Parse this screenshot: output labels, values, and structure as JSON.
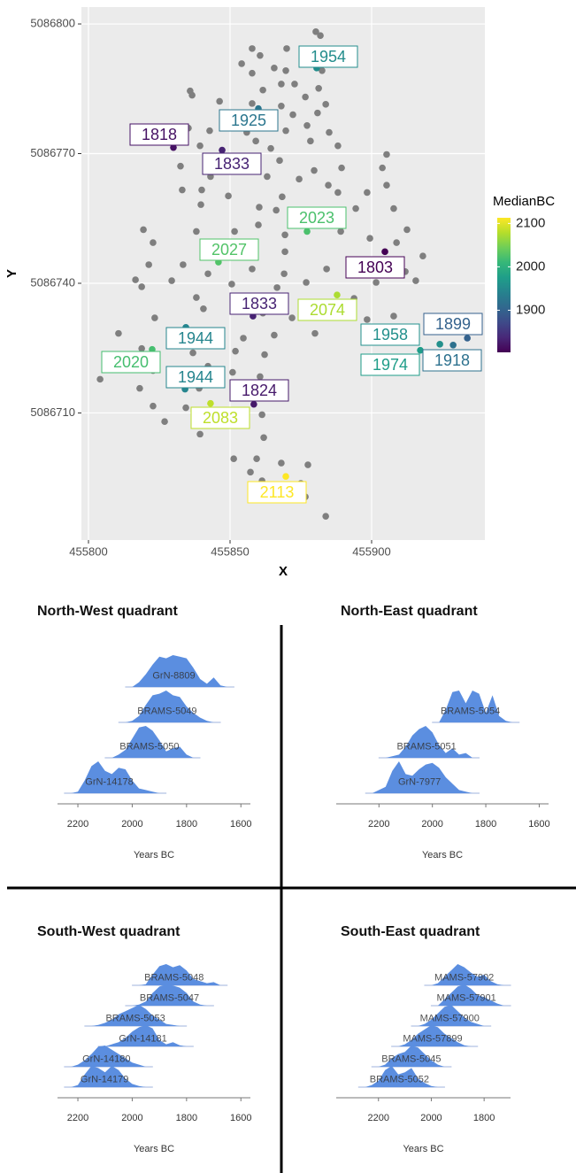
{
  "chart_data": [
    {
      "type": "scatter",
      "x_label": "X",
      "y_label": "Y",
      "xlim": [
        455797.5,
        455940
      ],
      "ylim": [
        5086680.6,
        5086803.9
      ],
      "xticks": [
        455800,
        455850,
        455900
      ],
      "yticks": [
        5086710,
        5086740,
        5086770,
        5086800
      ],
      "grid": true,
      "background": "#ebebeb",
      "point_color": "#7f7f7f",
      "points": {
        "x": [
          455880.3,
          455881.9,
          455857.8,
          455870,
          455860.6,
          455854.1,
          455865.6,
          455875.6,
          455857.8,
          455869.7,
          455882.5,
          455872.8,
          455868.1,
          455881.3,
          455861.6,
          455835.9,
          455836.6,
          455876.6,
          455846.3,
          455857.8,
          455868.1,
          455883.8,
          455872.2,
          455880.9,
          455851.6,
          455860.9,
          455877.2,
          455835.3,
          455842.8,
          455855.9,
          455869.7,
          455885,
          455859.1,
          455878.4,
          455839.4,
          455864.4,
          455888.1,
          455851.6,
          455867.5,
          455905.3,
          455832.5,
          455847.5,
          455879.7,
          455889.4,
          455903.8,
          455863.1,
          455843.1,
          455874.4,
          455884.7,
          455833.1,
          455840,
          455849.4,
          455868.4,
          455888.1,
          455898.4,
          455905.3,
          455839.7,
          455860.3,
          455866.3,
          455894.4,
          455907.8,
          455819.4,
          455860,
          455838.1,
          455851.6,
          455869.4,
          455889.1,
          455912.5,
          455822.8,
          455852.8,
          455869.4,
          455899.4,
          455908.8,
          455918.1,
          455821.3,
          455833.4,
          455842.2,
          455857.8,
          455869.1,
          455884.1,
          455895,
          455911.9,
          455816.6,
          455829.4,
          455850.6,
          455866.6,
          455876.9,
          455901.6,
          455915.6,
          455818.8,
          455838.1,
          455854.4,
          455863.4,
          455884.7,
          455893.8,
          455840.6,
          455861.6,
          455871.9,
          455823.4,
          455898.4,
          455907.8,
          455810.6,
          455830.6,
          455844.7,
          455854.7,
          455865.6,
          455880,
          455818.8,
          455836.9,
          455851.9,
          455862.2,
          455813.8,
          455842.2,
          455822.8,
          455832.8,
          455850.9,
          455860.6,
          455818.1,
          455839.1,
          455864.1,
          455822.8,
          455834.4,
          455846.9,
          455861.3,
          455826.9,
          455853.1,
          455839.4,
          455861.9,
          455851.3,
          455859.4,
          455868.1,
          455857.2,
          455877.5,
          455861.3,
          455875,
          455876.6,
          455868.8,
          455883.8,
          455804.1
        ],
        "y": [
          5086798.2,
          5086797.3,
          5086794.3,
          5086794.3,
          5086792.7,
          5086790.8,
          5086789.8,
          5086791.2,
          5086788.6,
          5086789.2,
          5086789.2,
          5086786.1,
          5086786.1,
          5086785.1,
          5086784.7,
          5086784.5,
          5086783.5,
          5086783.1,
          5086782.1,
          5086781.6,
          5086781,
          5086781.4,
          5086779,
          5086779.4,
          5086776.9,
          5086778,
          5086776.5,
          5086775.9,
          5086775.3,
          5086774.9,
          5086775.3,
          5086774.9,
          5086772.9,
          5086772.9,
          5086771.8,
          5086771.2,
          5086771.8,
          5086769.4,
          5086768.4,
          5086769.8,
          5086767.1,
          5086766.7,
          5086766.1,
          5086766.7,
          5086766.7,
          5086764.7,
          5086764.7,
          5086764.1,
          5086762.7,
          5086761.6,
          5086761.6,
          5086760.2,
          5086760,
          5086761,
          5086761,
          5086762.7,
          5086758.2,
          5086757.6,
          5086756.9,
          5086757.3,
          5086757.3,
          5086752.4,
          5086753.5,
          5086752,
          5086752,
          5086751.2,
          5086752,
          5086752.4,
          5086749.4,
          5086748.4,
          5086747.3,
          5086750.4,
          5086749.4,
          5086746.3,
          5086744.3,
          5086744.3,
          5086742.2,
          5086743.3,
          5086742.2,
          5086743.3,
          5086744.7,
          5086742.7,
          5086740.8,
          5086740.6,
          5086739.8,
          5086739,
          5086740.2,
          5086740.2,
          5086740.6,
          5086739.2,
          5086736.7,
          5086736.1,
          5086735.1,
          5086735.3,
          5086736.5,
          5086734.1,
          5086733.1,
          5086732,
          5086732,
          5086731.6,
          5086732.4,
          5086728.4,
          5086726.9,
          5086727.1,
          5086727.3,
          5086728,
          5086728.4,
          5086724.9,
          5086723.9,
          5086724.3,
          5086723.5,
          5086721.4,
          5086720.8,
          5086719.8,
          5086719.8,
          5086719.4,
          5086718.4,
          5086715.7,
          5086715.7,
          5086714.7,
          5086711.6,
          5086711.2,
          5086709.6,
          5086709.6,
          5086708,
          5086707.6,
          5086705.1,
          5086704.3,
          5086699.4,
          5086699.4,
          5086698.4,
          5086696.3,
          5086698,
          5086694.3,
          5086693.7,
          5086690.6,
          5086691.2,
          5086686.1,
          5086717.8
        ]
      },
      "labeled_points": {
        "x": [
          455880.6,
          455860,
          455830,
          455847.2,
          455877.2,
          455845.9,
          455904.7,
          455858.1,
          455887.8,
          455834.4,
          455924.1,
          455917.2,
          455928.8,
          455933.8,
          455822.5,
          455834.1,
          455858.4,
          455843.1,
          455869.7
        ],
        "y": [
          5086789.8,
          5086780.4,
          5086771.4,
          5086770.8,
          5086752,
          5086744.9,
          5086747.3,
          5086732.4,
          5086737.3,
          5086729.8,
          5086725.9,
          5086724.5,
          5086725.7,
          5086727.3,
          5086724.7,
          5086715.5,
          5086712,
          5086712.2,
          5086695.3
        ],
        "values": [
          1954,
          1925,
          1818,
          1833,
          2023,
          2027,
          1803,
          1833,
          2074,
          1944,
          1958,
          1974,
          1918,
          1899,
          2020,
          1944,
          1824,
          2083,
          2113
        ]
      },
      "color_title": "MedianBC",
      "colormap": "viridis",
      "color_lim": [
        1803,
        2113
      ],
      "color_ticks": [
        1900,
        2000,
        2100
      ]
    },
    {
      "type": "ridgeline",
      "title": "North-West quadrant",
      "x_label": "Years BC",
      "xlim": [
        2275,
        1565
      ],
      "xticks": [
        2200,
        2000,
        1800,
        1600
      ],
      "color": "#5b8ee0",
      "x": [
        2250,
        2225,
        2200,
        2175,
        2150,
        2125,
        2100,
        2075,
        2050,
        2025,
        2000,
        1975,
        1950,
        1925,
        1900,
        1875,
        1850,
        1825,
        1800,
        1775,
        1750,
        1725,
        1700,
        1675,
        1650,
        1625,
        1600
      ],
      "series": [
        {
          "name": "GrN-8809",
          "values": [
            0,
            0,
            0,
            0,
            0,
            0,
            0,
            0,
            0,
            0,
            0,
            15,
            40,
            70,
            95,
            90,
            100,
            95,
            90,
            60,
            25,
            10,
            30,
            5,
            0,
            0,
            0
          ]
        },
        {
          "name": "BRAMS-5049",
          "values": [
            0,
            0,
            0,
            0,
            0,
            0,
            0,
            0,
            0,
            0,
            5,
            20,
            55,
            85,
            90,
            100,
            85,
            80,
            50,
            30,
            15,
            5,
            0,
            0,
            0,
            0,
            0
          ]
        },
        {
          "name": "BRAMS-5050",
          "values": [
            0,
            0,
            0,
            0,
            0,
            0,
            0,
            0,
            10,
            25,
            60,
            95,
            100,
            85,
            55,
            20,
            30,
            35,
            10,
            0,
            0,
            0,
            0,
            0,
            0,
            0,
            0
          ]
        },
        {
          "name": "GrN-14178",
          "values": [
            0,
            0,
            5,
            40,
            85,
            100,
            70,
            60,
            80,
            75,
            40,
            15,
            10,
            5,
            0,
            0,
            0,
            0,
            0,
            0,
            0,
            0,
            0,
            0,
            0,
            0,
            0
          ]
        }
      ]
    },
    {
      "type": "ridgeline",
      "title": "North-East quadrant",
      "x_label": "Years BC",
      "xlim": [
        2360,
        1565
      ],
      "xticks": [
        2200,
        2000,
        1800,
        1600
      ],
      "color": "#5b8ee0",
      "x": [
        2250,
        2225,
        2200,
        2175,
        2150,
        2125,
        2100,
        2075,
        2050,
        2025,
        2000,
        1975,
        1950,
        1925,
        1900,
        1875,
        1850,
        1825,
        1800,
        1775,
        1750,
        1725,
        1700,
        1675,
        1650,
        1625,
        1600
      ],
      "series": [
        {
          "name": "BRAMS-5054",
          "values": [
            0,
            0,
            0,
            0,
            0,
            0,
            0,
            0,
            0,
            0,
            0,
            0,
            40,
            95,
            100,
            60,
            100,
            90,
            30,
            85,
            20,
            5,
            0,
            0,
            0,
            0,
            0
          ]
        },
        {
          "name": "BRAMS-5051",
          "values": [
            0,
            0,
            0,
            0,
            5,
            10,
            35,
            70,
            90,
            100,
            80,
            40,
            15,
            30,
            10,
            15,
            0,
            0,
            0,
            0,
            0,
            0,
            0,
            0,
            0,
            0,
            0
          ]
        },
        {
          "name": "GrN-7977",
          "values": [
            0,
            0,
            10,
            20,
            70,
            100,
            60,
            55,
            75,
            90,
            95,
            80,
            50,
            30,
            10,
            5,
            0,
            0,
            0,
            0,
            0,
            0,
            0,
            0,
            0,
            0,
            0
          ]
        }
      ]
    },
    {
      "type": "ridgeline",
      "title": "South-West quadrant",
      "x_label": "Years BC",
      "xlim": [
        2275,
        1565
      ],
      "xticks": [
        2200,
        2000,
        1800,
        1600
      ],
      "color": "#5b8ee0",
      "x": [
        2250,
        2225,
        2200,
        2175,
        2150,
        2125,
        2100,
        2075,
        2050,
        2025,
        2000,
        1975,
        1950,
        1925,
        1900,
        1875,
        1850,
        1825,
        1800,
        1775,
        1750,
        1725,
        1700,
        1675,
        1650,
        1625,
        1600
      ],
      "series": [
        {
          "name": "BRAMS-5048",
          "values": [
            0,
            0,
            0,
            0,
            0,
            0,
            0,
            0,
            0,
            0,
            0,
            0,
            5,
            50,
            90,
            100,
            85,
            95,
            70,
            30,
            20,
            10,
            15,
            0,
            0,
            0,
            0
          ]
        },
        {
          "name": "BRAMS-5047",
          "values": [
            0,
            0,
            0,
            0,
            0,
            0,
            0,
            0,
            0,
            0,
            0,
            5,
            20,
            60,
            90,
            100,
            95,
            85,
            60,
            20,
            5,
            0,
            0,
            0,
            0,
            0,
            0
          ]
        },
        {
          "name": "BRAMS-5053",
          "values": [
            0,
            0,
            0,
            0,
            0,
            5,
            15,
            30,
            55,
            70,
            85,
            100,
            80,
            50,
            30,
            10,
            5,
            0,
            0,
            0,
            0,
            0,
            0,
            0,
            0,
            0,
            0
          ]
        },
        {
          "name": "GrN-14181",
          "values": [
            0,
            0,
            0,
            0,
            0,
            0,
            0,
            10,
            20,
            40,
            70,
            90,
            100,
            85,
            30,
            10,
            20,
            5,
            0,
            0,
            0,
            0,
            0,
            0,
            0,
            0,
            0
          ]
        },
        {
          "name": "GrN-14180",
          "values": [
            0,
            0,
            10,
            30,
            60,
            95,
            100,
            80,
            60,
            40,
            20,
            10,
            0,
            0,
            0,
            0,
            0,
            0,
            0,
            0,
            0,
            0,
            0,
            0,
            0,
            0,
            0
          ]
        },
        {
          "name": "GrN-14179",
          "values": [
            0,
            0,
            10,
            60,
            100,
            90,
            70,
            100,
            80,
            40,
            15,
            5,
            0,
            0,
            0,
            0,
            0,
            0,
            0,
            0,
            0,
            0,
            0,
            0,
            0,
            0,
            0
          ]
        }
      ]
    },
    {
      "type": "ridgeline",
      "title": "South-East quadrant",
      "x_label": "Years BC",
      "xlim": [
        2360,
        1700
      ],
      "xticks": [
        2200,
        2000,
        1800
      ],
      "color": "#5b8ee0",
      "x": [
        2250,
        2225,
        2200,
        2175,
        2150,
        2125,
        2100,
        2075,
        2050,
        2025,
        2000,
        1975,
        1950,
        1925,
        1900,
        1875,
        1850,
        1825,
        1800,
        1775,
        1750,
        1725,
        1700
      ],
      "series": [
        {
          "name": "MAMS-57902",
          "values": [
            0,
            0,
            0,
            0,
            0,
            0,
            0,
            0,
            0,
            0,
            0,
            10,
            40,
            70,
            100,
            85,
            60,
            40,
            50,
            20,
            5,
            0,
            0
          ]
        },
        {
          "name": "MAMS-57901",
          "values": [
            0,
            0,
            0,
            0,
            0,
            0,
            0,
            0,
            0,
            0,
            0,
            0,
            30,
            60,
            90,
            100,
            80,
            50,
            40,
            25,
            10,
            0,
            0
          ]
        },
        {
          "name": "MAMS-57900",
          "values": [
            0,
            0,
            0,
            0,
            0,
            0,
            0,
            0,
            0,
            10,
            30,
            60,
            90,
            100,
            70,
            40,
            20,
            10,
            0,
            0,
            0,
            0,
            0
          ]
        },
        {
          "name": "MAMS-57899",
          "values": [
            0,
            0,
            0,
            0,
            0,
            0,
            10,
            30,
            60,
            80,
            100,
            90,
            60,
            40,
            20,
            5,
            0,
            0,
            0,
            0,
            0,
            0,
            0
          ]
        },
        {
          "name": "BRAMS-5045",
          "values": [
            0,
            0,
            0,
            10,
            40,
            60,
            70,
            100,
            90,
            60,
            30,
            10,
            0,
            0,
            0,
            0,
            0,
            0,
            0,
            0,
            0,
            0,
            0
          ]
        },
        {
          "name": "BRAMS-5052",
          "values": [
            0,
            10,
            30,
            80,
            100,
            60,
            70,
            90,
            40,
            20,
            5,
            0,
            0,
            0,
            0,
            0,
            0,
            0,
            0,
            0,
            0,
            0,
            0
          ]
        }
      ]
    }
  ]
}
